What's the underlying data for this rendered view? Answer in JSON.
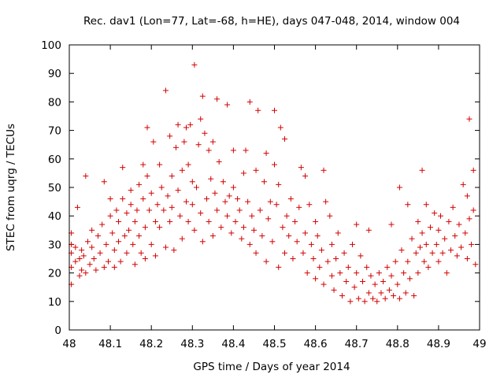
{
  "chart_data": {
    "type": "scatter",
    "title": "Rec. dav1 (Lon=77, Lat=-68, h=HE), days 047-048, 2014, window 004",
    "xlabel": "GPS time / Days of year 2014",
    "ylabel": "STEC from uqrg / TECUs",
    "xlim": [
      48,
      49
    ],
    "ylim": [
      0,
      100
    ],
    "xticks": [
      "48",
      "48.1",
      "48.2",
      "48.3",
      "48.4",
      "48.5",
      "48.6",
      "48.7",
      "48.8",
      "48.9",
      "49"
    ],
    "yticks": [
      "0",
      "10",
      "20",
      "30",
      "40",
      "50",
      "60",
      "70",
      "80",
      "90",
      "100"
    ],
    "grid": false,
    "marker": "plus",
    "series_color": "#d40000",
    "series": [
      {
        "name": "STEC",
        "points": [
          [
            48.005,
            16
          ],
          [
            48.005,
            22
          ],
          [
            48.005,
            27
          ],
          [
            48.005,
            30
          ],
          [
            48.005,
            34
          ],
          [
            48.015,
            24
          ],
          [
            48.015,
            29
          ],
          [
            48.02,
            43
          ],
          [
            48.025,
            19
          ],
          [
            48.025,
            25
          ],
          [
            48.03,
            21
          ],
          [
            48.03,
            28
          ],
          [
            48.035,
            26
          ],
          [
            48.04,
            20
          ],
          [
            48.04,
            54
          ],
          [
            48.045,
            31
          ],
          [
            48.05,
            23
          ],
          [
            48.055,
            29
          ],
          [
            48.055,
            35
          ],
          [
            48.06,
            25
          ],
          [
            48.065,
            21
          ],
          [
            48.07,
            33
          ],
          [
            48.075,
            27
          ],
          [
            48.08,
            37
          ],
          [
            48.085,
            22
          ],
          [
            48.085,
            52
          ],
          [
            48.09,
            30
          ],
          [
            48.095,
            24
          ],
          [
            48.1,
            40
          ],
          [
            48.1,
            46
          ],
          [
            48.105,
            34
          ],
          [
            48.11,
            28
          ],
          [
            48.11,
            22
          ],
          [
            48.115,
            42
          ],
          [
            48.12,
            31
          ],
          [
            48.12,
            38
          ],
          [
            48.125,
            24
          ],
          [
            48.13,
            46
          ],
          [
            48.13,
            57
          ],
          [
            48.135,
            33
          ],
          [
            48.14,
            27
          ],
          [
            48.14,
            41
          ],
          [
            48.145,
            35
          ],
          [
            48.15,
            44
          ],
          [
            48.15,
            49
          ],
          [
            48.155,
            30
          ],
          [
            48.16,
            38
          ],
          [
            48.16,
            23
          ],
          [
            48.165,
            42
          ],
          [
            48.17,
            33
          ],
          [
            48.17,
            51
          ],
          [
            48.175,
            27
          ],
          [
            48.18,
            46
          ],
          [
            48.18,
            58
          ],
          [
            48.185,
            36
          ],
          [
            48.185,
            25
          ],
          [
            48.19,
            71
          ],
          [
            48.19,
            54
          ],
          [
            48.195,
            42
          ],
          [
            48.2,
            30
          ],
          [
            48.2,
            48
          ],
          [
            48.205,
            66
          ],
          [
            48.21,
            38
          ],
          [
            48.21,
            26
          ],
          [
            48.215,
            44
          ],
          [
            48.22,
            58
          ],
          [
            48.22,
            36
          ],
          [
            48.225,
            50
          ],
          [
            48.23,
            42
          ],
          [
            48.235,
            84
          ],
          [
            48.235,
            29
          ],
          [
            48.24,
            47
          ],
          [
            48.245,
            68
          ],
          [
            48.245,
            38
          ],
          [
            48.25,
            54
          ],
          [
            48.25,
            43
          ],
          [
            48.255,
            28
          ],
          [
            48.26,
            64
          ],
          [
            48.265,
            72
          ],
          [
            48.265,
            49
          ],
          [
            48.27,
            40
          ],
          [
            48.275,
            56
          ],
          [
            48.275,
            32
          ],
          [
            48.28,
            66
          ],
          [
            48.285,
            71
          ],
          [
            48.285,
            45
          ],
          [
            48.29,
            38
          ],
          [
            48.29,
            58
          ],
          [
            48.295,
            72
          ],
          [
            48.3,
            52
          ],
          [
            48.3,
            44
          ],
          [
            48.305,
            93
          ],
          [
            48.305,
            35
          ],
          [
            48.31,
            50
          ],
          [
            48.315,
            65
          ],
          [
            48.32,
            41
          ],
          [
            48.32,
            74
          ],
          [
            48.325,
            82
          ],
          [
            48.325,
            31
          ],
          [
            48.33,
            69
          ],
          [
            48.335,
            46
          ],
          [
            48.34,
            63
          ],
          [
            48.34,
            38
          ],
          [
            48.345,
            53
          ],
          [
            48.35,
            66
          ],
          [
            48.35,
            33
          ],
          [
            48.355,
            48
          ],
          [
            48.36,
            81
          ],
          [
            48.36,
            42
          ],
          [
            48.365,
            59
          ],
          [
            48.37,
            36
          ],
          [
            48.375,
            52
          ],
          [
            48.38,
            45
          ],
          [
            48.385,
            79
          ],
          [
            48.385,
            40
          ],
          [
            48.39,
            47
          ],
          [
            48.395,
            34
          ],
          [
            48.4,
            63
          ],
          [
            48.4,
            50
          ],
          [
            48.405,
            38
          ],
          [
            48.41,
            46
          ],
          [
            48.415,
            42
          ],
          [
            48.42,
            32
          ],
          [
            48.425,
            55
          ],
          [
            48.425,
            36
          ],
          [
            48.43,
            63
          ],
          [
            48.435,
            45
          ],
          [
            48.44,
            80
          ],
          [
            48.44,
            30
          ],
          [
            48.445,
            40
          ],
          [
            48.45,
            35
          ],
          [
            48.455,
            56
          ],
          [
            48.455,
            27
          ],
          [
            48.46,
            77
          ],
          [
            48.465,
            42
          ],
          [
            48.47,
            33
          ],
          [
            48.475,
            52
          ],
          [
            48.48,
            62
          ],
          [
            48.48,
            24
          ],
          [
            48.485,
            39
          ],
          [
            48.49,
            45
          ],
          [
            48.495,
            31
          ],
          [
            48.5,
            58
          ],
          [
            48.5,
            77
          ],
          [
            48.505,
            44
          ],
          [
            48.51,
            22
          ],
          [
            48.51,
            51
          ],
          [
            48.515,
            71
          ],
          [
            48.52,
            36
          ],
          [
            48.525,
            67
          ],
          [
            48.525,
            27
          ],
          [
            48.53,
            40
          ],
          [
            48.535,
            33
          ],
          [
            48.54,
            46
          ],
          [
            48.545,
            25
          ],
          [
            48.55,
            38
          ],
          [
            48.555,
            31
          ],
          [
            48.56,
            43
          ],
          [
            48.565,
            57
          ],
          [
            48.57,
            27
          ],
          [
            48.575,
            54
          ],
          [
            48.575,
            34
          ],
          [
            48.58,
            20
          ],
          [
            48.585,
            44
          ],
          [
            48.59,
            30
          ],
          [
            48.595,
            25
          ],
          [
            48.6,
            18
          ],
          [
            48.6,
            38
          ],
          [
            48.605,
            33
          ],
          [
            48.61,
            22
          ],
          [
            48.615,
            28
          ],
          [
            48.62,
            56
          ],
          [
            48.62,
            16
          ],
          [
            48.625,
            45
          ],
          [
            48.63,
            24
          ],
          [
            48.635,
            40
          ],
          [
            48.64,
            19
          ],
          [
            48.64,
            30
          ],
          [
            48.645,
            14
          ],
          [
            48.65,
            25
          ],
          [
            48.655,
            34
          ],
          [
            48.66,
            20
          ],
          [
            48.665,
            12
          ],
          [
            48.67,
            27
          ],
          [
            48.675,
            17
          ],
          [
            48.68,
            22
          ],
          [
            48.685,
            10
          ],
          [
            48.69,
            30
          ],
          [
            48.695,
            15
          ],
          [
            48.7,
            37
          ],
          [
            48.7,
            20
          ],
          [
            48.705,
            11
          ],
          [
            48.71,
            26
          ],
          [
            48.715,
            17
          ],
          [
            48.72,
            10
          ],
          [
            48.725,
            22
          ],
          [
            48.73,
            35
          ],
          [
            48.73,
            13
          ],
          [
            48.735,
            19
          ],
          [
            48.74,
            11
          ],
          [
            48.745,
            16
          ],
          [
            48.75,
            10
          ],
          [
            48.755,
            20
          ],
          [
            48.76,
            13
          ],
          [
            48.765,
            17
          ],
          [
            48.77,
            11
          ],
          [
            48.775,
            22
          ],
          [
            48.78,
            14
          ],
          [
            48.785,
            37
          ],
          [
            48.785,
            19
          ],
          [
            48.79,
            12
          ],
          [
            48.795,
            24
          ],
          [
            48.8,
            16
          ],
          [
            48.805,
            50
          ],
          [
            48.805,
            11
          ],
          [
            48.81,
            28
          ],
          [
            48.815,
            20
          ],
          [
            48.82,
            13
          ],
          [
            48.825,
            44
          ],
          [
            48.825,
            24
          ],
          [
            48.83,
            18
          ],
          [
            48.835,
            32
          ],
          [
            48.84,
            12
          ],
          [
            48.845,
            27
          ],
          [
            48.85,
            38
          ],
          [
            48.85,
            20
          ],
          [
            48.855,
            29
          ],
          [
            48.86,
            56
          ],
          [
            48.86,
            34
          ],
          [
            48.865,
            24
          ],
          [
            48.87,
            44
          ],
          [
            48.87,
            30
          ],
          [
            48.875,
            22
          ],
          [
            48.88,
            36
          ],
          [
            48.885,
            27
          ],
          [
            48.89,
            41
          ],
          [
            48.895,
            30
          ],
          [
            48.9,
            24
          ],
          [
            48.9,
            35
          ],
          [
            48.905,
            40
          ],
          [
            48.91,
            27
          ],
          [
            48.915,
            32
          ],
          [
            48.92,
            20
          ],
          [
            48.925,
            38
          ],
          [
            48.93,
            28
          ],
          [
            48.935,
            43
          ],
          [
            48.94,
            33
          ],
          [
            48.945,
            26
          ],
          [
            48.95,
            37
          ],
          [
            48.955,
            29
          ],
          [
            48.96,
            51
          ],
          [
            48.965,
            34
          ],
          [
            48.97,
            25
          ],
          [
            48.97,
            47
          ],
          [
            48.975,
            74
          ],
          [
            48.975,
            39
          ],
          [
            48.98,
            30
          ],
          [
            48.985,
            56
          ],
          [
            48.985,
            42
          ],
          [
            48.99,
            23
          ]
        ]
      }
    ]
  }
}
